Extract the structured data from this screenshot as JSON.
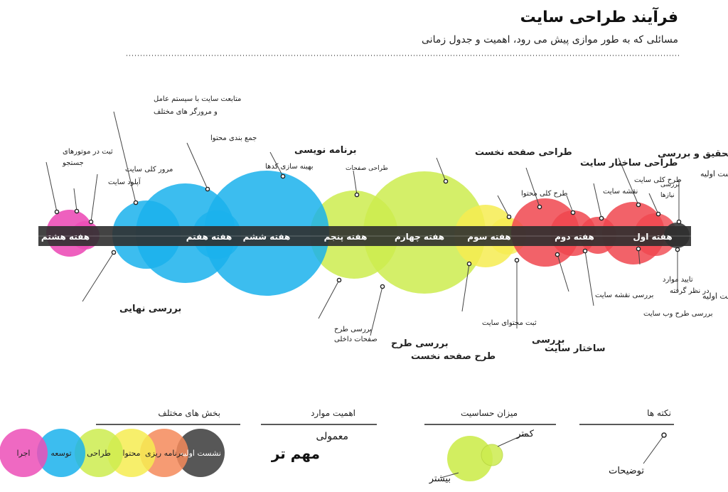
{
  "title": "فرآیند طراحی سایت",
  "subtitle": "مسائلی که به طور موازی پیش می رود، اهمیت و جدول زمانی",
  "colors": {
    "pink": "#ec4fb7",
    "blue": "#1ab2ec",
    "green": "#cdec4f",
    "yellow": "#f6ec51",
    "red": "#f0474f",
    "gray": "#3a3a3a",
    "orange": "#f58a5a",
    "bar": "#2f2f2f"
  },
  "weeks": [
    "هفته اول",
    "هفته دوم",
    "هفته سوم",
    "هفته چهارم",
    "هفته پنجم",
    "هفته ششم",
    "هفته هفتم",
    "هفته هشتم"
  ],
  "top_labels": [
    {
      "text": "نشست اولیه",
      "bold": false
    },
    {
      "text": "تحقیق و بررسی",
      "bold": true
    },
    {
      "text": "بررسی",
      "bold": false
    },
    {
      "text": "نیازها",
      "bold": false
    },
    {
      "text": "طرح کلی سایت",
      "bold": false
    },
    {
      "text": "نقشه سایت",
      "bold": false
    },
    {
      "text": "طراحی ساختار سایت",
      "bold": true
    },
    {
      "text": "طرح کلی محتوا",
      "bold": false
    },
    {
      "text": "طراحی صفحه نخست",
      "bold": true
    },
    {
      "text": "طراحی صفحات",
      "bold": false
    },
    {
      "text": "برنامه نویسی",
      "bold": true
    },
    {
      "text": "بهینه سازی کدها",
      "bold": false
    },
    {
      "text": "جمع بندی محتوا",
      "bold": false
    },
    {
      "text": "متابعت سایت با سیستم عامل",
      "bold": false
    },
    {
      "text": "و مرورگر های مختلف",
      "bold": false
    },
    {
      "text": "مرور کلی سایت",
      "bold": false
    },
    {
      "text": "آپلود سایت",
      "bold": false
    },
    {
      "text": "ثبت در موتورهای",
      "bold": false
    },
    {
      "text": "جستجو",
      "bold": false
    }
  ],
  "bottom_labels": [
    {
      "text": "نشست اولیه",
      "bold": false
    },
    {
      "text": "تایید موارد",
      "bold": false
    },
    {
      "text": "در نظر گرفته",
      "bold": false
    },
    {
      "text": "بررسی طرح وب سایت",
      "bold": false
    },
    {
      "text": "بررسی نقشه سایت",
      "bold": false
    },
    {
      "text": "بررسی",
      "bold": true
    },
    {
      "text": "ساختار سایت",
      "bold": true
    },
    {
      "text": "ثبت محتوای سایت",
      "bold": false
    },
    {
      "text": "بررسی طرح",
      "bold": true
    },
    {
      "text": "طرح صفحه نخست",
      "bold": true
    },
    {
      "text": "بررسی طرح",
      "bold": false
    },
    {
      "text": "صفحات داخلی",
      "bold": false
    },
    {
      "text": "بررسی نهایی",
      "bold": true
    }
  ],
  "legend": {
    "notes_heading": "نکته ها",
    "notes_label": "توضیحات",
    "sensitivity_heading": "میزان حساسیت",
    "less": "کمتر",
    "more": "بیشتر",
    "importance_heading": "اهمیت موارد",
    "normal": "معمولی",
    "important": "مهم تر",
    "sections_heading": "بخش های مختلف",
    "sections": [
      {
        "label": "نشست اولیه",
        "color": "#3a3a3a"
      },
      {
        "label": "برنامه ریزی",
        "color": "#f58a5a"
      },
      {
        "label": "محتوا",
        "color": "#f6ec51"
      },
      {
        "label": "طراحی",
        "color": "#cdec4f"
      },
      {
        "label": "توسعه",
        "color": "#1ab2ec"
      },
      {
        "label": "اجرا",
        "color": "#ec4fb7"
      }
    ]
  }
}
